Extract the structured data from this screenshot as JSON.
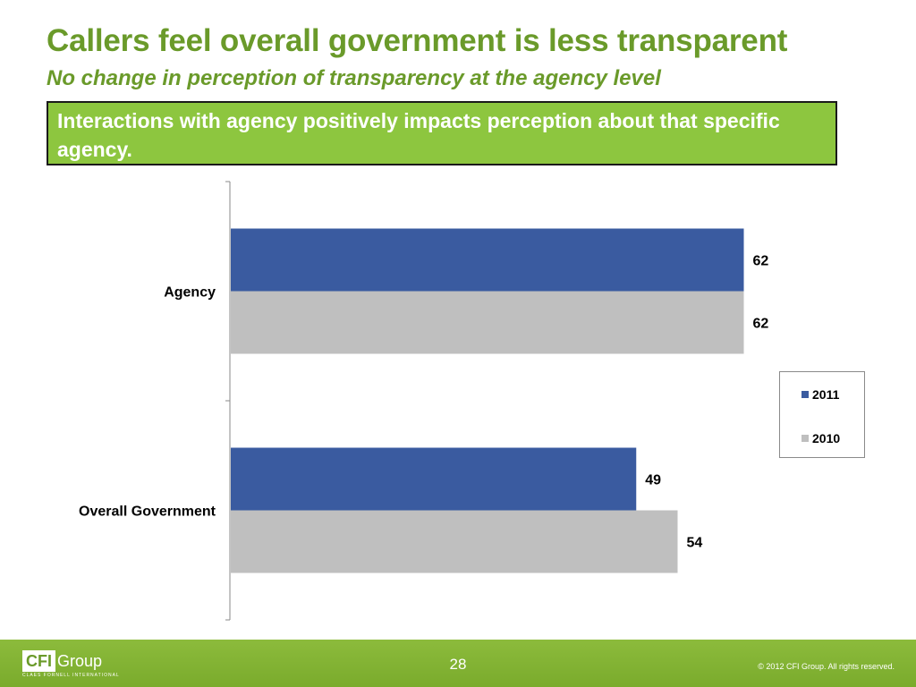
{
  "slide": {
    "title": "Callers feel overall government is less transparent",
    "subtitle": "No change in perception of transparency at the agency level",
    "callout": "Interactions with agency positively impacts perception about that specific agency."
  },
  "chart_data": {
    "type": "bar",
    "orientation": "horizontal",
    "categories": [
      "Agency",
      "Overall Government"
    ],
    "series": [
      {
        "name": "2011",
        "values": [
          62,
          49
        ],
        "color": "#3a5ba0"
      },
      {
        "name": "2010",
        "values": [
          62,
          54
        ],
        "color": "#bfbfbf"
      }
    ],
    "xlim": [
      0,
      100
    ],
    "data_labels": true,
    "grid": false,
    "legend": "right"
  },
  "footer": {
    "logo_box": "CFI",
    "logo_text": "Group",
    "logo_tagline": "CLAES FORNELL INTERNATIONAL",
    "page_number": "28",
    "copyright": "© 2012 CFI Group. All rights reserved."
  }
}
